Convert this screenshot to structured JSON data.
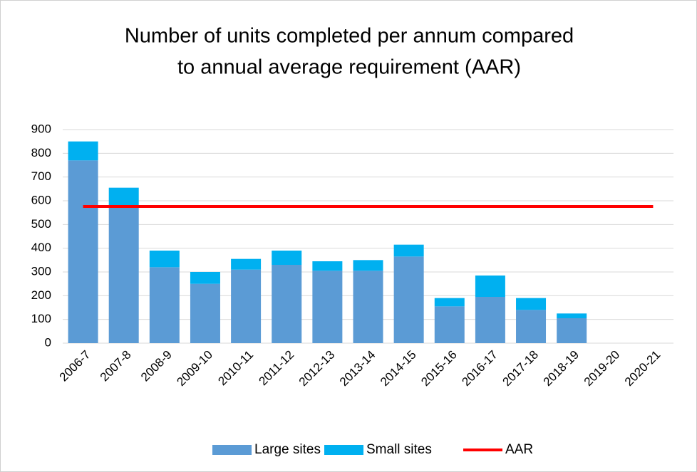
{
  "chart_data": {
    "type": "bar",
    "stacked": true,
    "title": [
      "Number of units completed per annum compared",
      "to annual average requirement (AAR)"
    ],
    "categories": [
      "2006-7",
      "2007-8",
      "2008-9",
      "2009-10",
      "2010-11",
      "2011-12",
      "2012-13",
      "2013-14",
      "2014-15",
      "2015-16",
      "2016-17",
      "2017-18",
      "2018-19",
      "2019-20",
      "2020-21"
    ],
    "series": [
      {
        "name": "Large sites",
        "type": "bar",
        "color": "#5b9bd5",
        "values": [
          770,
          570,
          320,
          250,
          310,
          330,
          305,
          305,
          365,
          155,
          195,
          140,
          105,
          null,
          null
        ]
      },
      {
        "name": "Small sites",
        "type": "bar",
        "color": "#00b0f0",
        "values": [
          80,
          85,
          70,
          50,
          45,
          60,
          40,
          45,
          50,
          35,
          90,
          50,
          20,
          null,
          null
        ]
      },
      {
        "name": "AAR",
        "type": "line",
        "color": "#ff0000",
        "values": [
          576,
          576,
          576,
          576,
          576,
          576,
          576,
          576,
          576,
          576,
          576,
          576,
          576,
          576,
          576
        ]
      }
    ],
    "ylim": [
      0,
      900
    ],
    "yticks": [
      0,
      100,
      200,
      300,
      400,
      500,
      600,
      700,
      800,
      900
    ],
    "grid": true,
    "legend": "bottom"
  }
}
